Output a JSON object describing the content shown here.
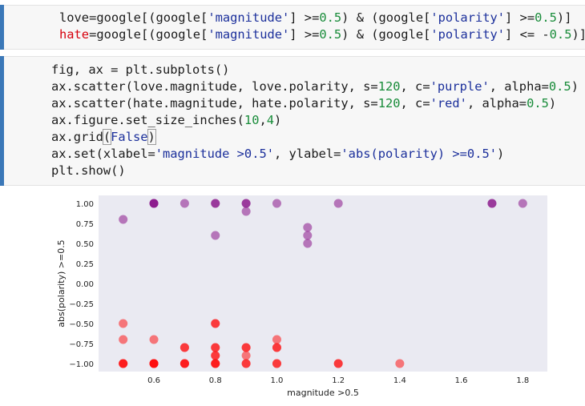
{
  "cell1": {
    "line1": {
      "a": "love=google[(google[",
      "s1": "'magnitude'",
      "b": "] >=",
      "n1": "0.5",
      "c": ") & (google[",
      "s2": "'polarity'",
      "d": "] >=",
      "n2": "0.5",
      "e": ")]"
    },
    "line2": {
      "var": "hate",
      "a": "=google[(google[",
      "s1": "'magnitude'",
      "b": "] >=",
      "n1": "0.5",
      "c": ") & (google[",
      "s2": "'polarity'",
      "d": "] <= -",
      "n2": "0.5",
      "e": ")]"
    }
  },
  "cell2": {
    "l1": "fig, ax = plt.subplots()",
    "l2": {
      "a": "ax.scatter(love.magnitude, love.polarity, s=",
      "n1": "120",
      "b": ", c=",
      "s1": "'purple'",
      "c": ", alpha=",
      "n2": "0.5",
      "d": ")"
    },
    "l3": {
      "a": "ax.scatter(hate.magnitude, hate.polarity, s=",
      "n1": "120",
      "b": ", c=",
      "s1": "'red'",
      "c": ", alpha=",
      "n2": "0.5",
      "d": ")"
    },
    "l4": {
      "a": "ax.figure.set_size_inches(",
      "n1": "10",
      "b": ",",
      "n2": "4",
      "c": ")"
    },
    "l5": {
      "a": "ax.grid",
      "p1": "(",
      "k": "False",
      "p2": ")"
    },
    "l6": {
      "a": "ax.set(xlabel=",
      "s1": "'magnitude >0.5'",
      "b": ", ylabel=",
      "s2": "'abs(polarity) >=0.5'",
      "c": ")"
    },
    "l7": "plt.show()"
  },
  "chart_data": {
    "type": "scatter",
    "xlabel": "magnitude >0.5",
    "ylabel": "abs(polarity) >=0.5",
    "xlim": [
      0.42,
      1.88
    ],
    "ylim": [
      -1.1,
      1.1
    ],
    "xticks": [
      "0.6",
      "0.8",
      "1.0",
      "1.2",
      "1.4",
      "1.6",
      "1.8"
    ],
    "xtick_values": [
      0.6,
      0.8,
      1.0,
      1.2,
      1.4,
      1.6,
      1.8
    ],
    "yticks": [
      "1.00",
      "0.75",
      "0.50",
      "0.25",
      "0.00",
      "−0.25",
      "−0.50",
      "−0.75",
      "−1.00"
    ],
    "ytick_values": [
      1.0,
      0.75,
      0.5,
      0.25,
      0.0,
      -0.25,
      -0.5,
      -0.75,
      -1.0
    ],
    "grid": false,
    "background": "#eaeaf2",
    "series": [
      {
        "color": "#800080",
        "alpha": 0.5,
        "points": [
          [
            0.5,
            0.8
          ],
          [
            0.6,
            1.0
          ],
          [
            0.6,
            1.0
          ],
          [
            0.6,
            1.0
          ],
          [
            0.7,
            1.0
          ],
          [
            0.8,
            1.0
          ],
          [
            0.8,
            1.0
          ],
          [
            0.8,
            0.6
          ],
          [
            0.9,
            1.0
          ],
          [
            0.9,
            1.0
          ],
          [
            0.9,
            0.9
          ],
          [
            1.0,
            1.0
          ],
          [
            1.1,
            0.7
          ],
          [
            1.1,
            0.6
          ],
          [
            1.1,
            0.5
          ],
          [
            1.2,
            1.0
          ],
          [
            1.7,
            1.0
          ],
          [
            1.7,
            1.0
          ],
          [
            1.8,
            1.0
          ]
        ]
      },
      {
        "color": "#ff0000",
        "alpha": 0.5,
        "points": [
          [
            0.5,
            -0.5
          ],
          [
            0.5,
            -0.7
          ],
          [
            0.5,
            -1.0
          ],
          [
            0.5,
            -1.0
          ],
          [
            0.5,
            -1.0
          ],
          [
            0.6,
            -0.7
          ],
          [
            0.6,
            -1.0
          ],
          [
            0.6,
            -1.0
          ],
          [
            0.6,
            -1.0
          ],
          [
            0.6,
            -1.0
          ],
          [
            0.7,
            -0.8
          ],
          [
            0.7,
            -0.8
          ],
          [
            0.7,
            -1.0
          ],
          [
            0.7,
            -1.0
          ],
          [
            0.7,
            -1.0
          ],
          [
            0.8,
            -0.5
          ],
          [
            0.8,
            -0.5
          ],
          [
            0.8,
            -0.8
          ],
          [
            0.8,
            -0.8
          ],
          [
            0.8,
            -0.9
          ],
          [
            0.8,
            -0.9
          ],
          [
            0.8,
            -1.0
          ],
          [
            0.8,
            -1.0
          ],
          [
            0.8,
            -1.0
          ],
          [
            0.9,
            -0.8
          ],
          [
            0.9,
            -0.8
          ],
          [
            0.9,
            -0.9
          ],
          [
            0.9,
            -1.0
          ],
          [
            0.9,
            -1.0
          ],
          [
            1.0,
            -0.7
          ],
          [
            1.0,
            -0.8
          ],
          [
            1.0,
            -0.8
          ],
          [
            1.0,
            -1.0
          ],
          [
            1.0,
            -1.0
          ],
          [
            1.2,
            -1.0
          ],
          [
            1.2,
            -1.0
          ],
          [
            1.4,
            -1.0
          ]
        ]
      }
    ]
  }
}
